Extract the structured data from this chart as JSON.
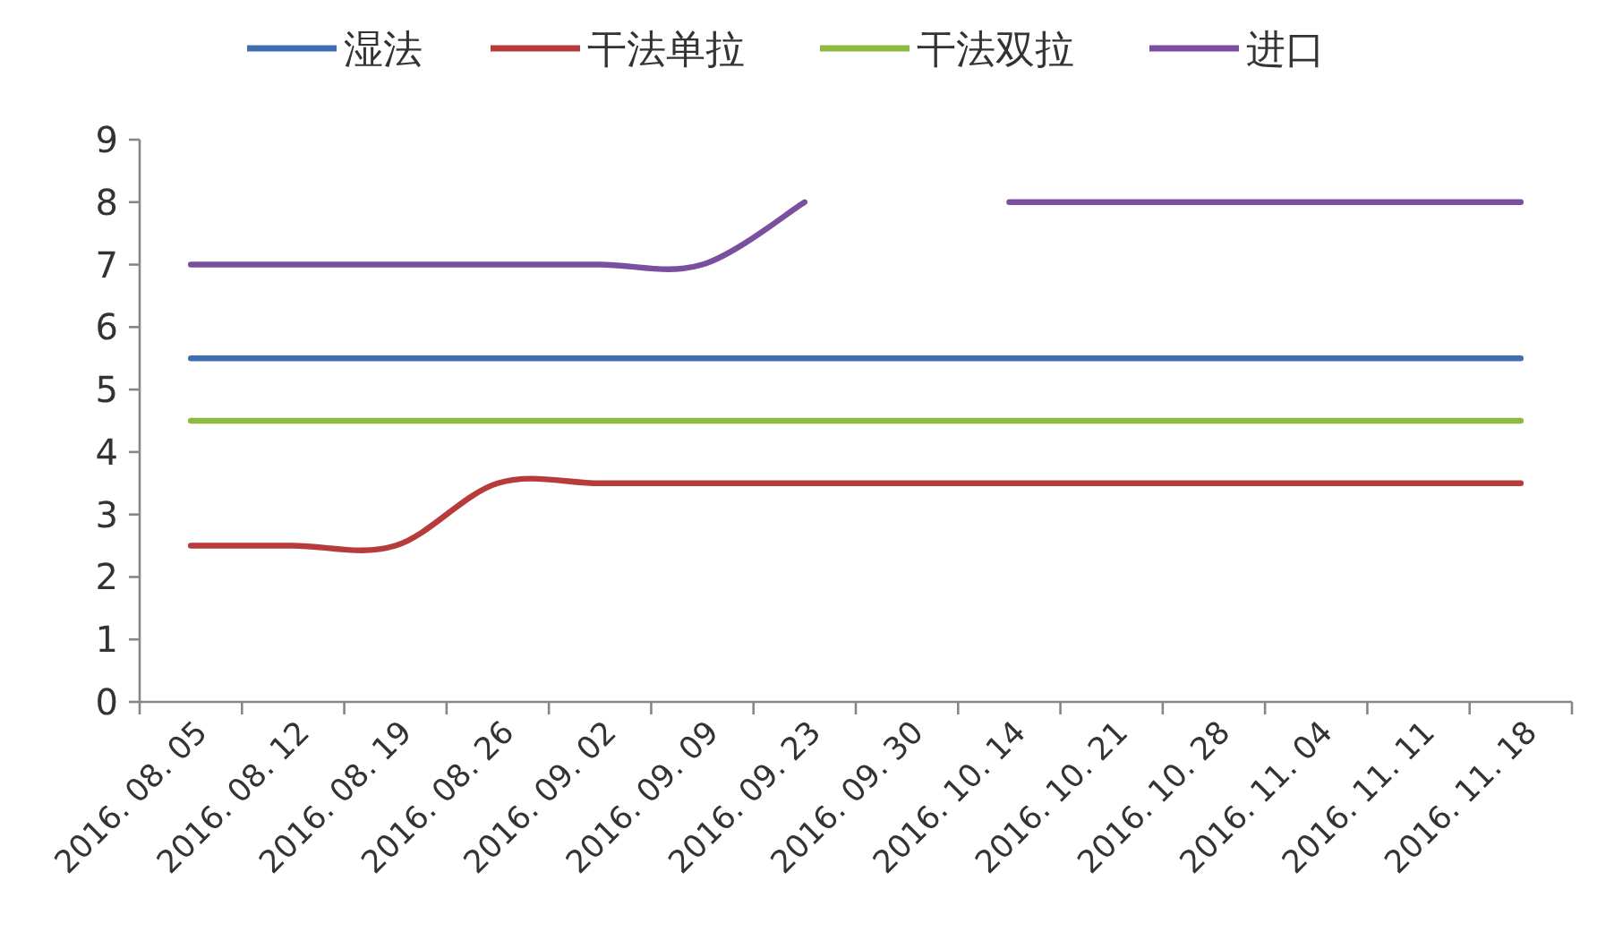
{
  "chart_data": {
    "type": "line",
    "legend": "top",
    "grid": false,
    "marker": "none",
    "line_style": "solid",
    "categories": [
      "2016. 08. 05",
      "2016. 08. 12",
      "2016. 08. 19",
      "2016. 08. 26",
      "2016. 09. 02",
      "2016. 09. 09",
      "2016. 09. 23",
      "2016. 09. 30",
      "2016. 10. 14",
      "2016. 10. 21",
      "2016. 10. 28",
      "2016. 11. 04",
      "2016. 11. 11",
      "2016. 11. 18"
    ],
    "ylim": [
      0,
      9
    ],
    "yticks": [
      0,
      1,
      2,
      3,
      4,
      5,
      6,
      7,
      8,
      9
    ],
    "series": [
      {
        "name": "湿法",
        "color": "#3f6fb0",
        "values": [
          5.5,
          5.5,
          5.5,
          5.5,
          5.5,
          5.5,
          5.5,
          5.5,
          5.5,
          5.5,
          5.5,
          5.5,
          5.5,
          5.5
        ]
      },
      {
        "name": "干法单拉",
        "color": "#b83b3b",
        "values": [
          2.5,
          2.5,
          2.5,
          3.5,
          3.5,
          3.5,
          3.5,
          3.5,
          3.5,
          3.5,
          3.5,
          3.5,
          3.5,
          3.5
        ]
      },
      {
        "name": "干法双拉",
        "color": "#8cbb3f",
        "values": [
          4.5,
          4.5,
          4.5,
          4.5,
          4.5,
          4.5,
          4.5,
          4.5,
          4.5,
          4.5,
          4.5,
          4.5,
          4.5,
          4.5
        ]
      },
      {
        "name": "进口",
        "color": "#7b4fa0",
        "values": [
          7,
          7,
          7,
          7,
          7,
          7,
          8,
          null,
          8,
          8,
          8,
          8,
          8,
          8
        ]
      }
    ]
  }
}
